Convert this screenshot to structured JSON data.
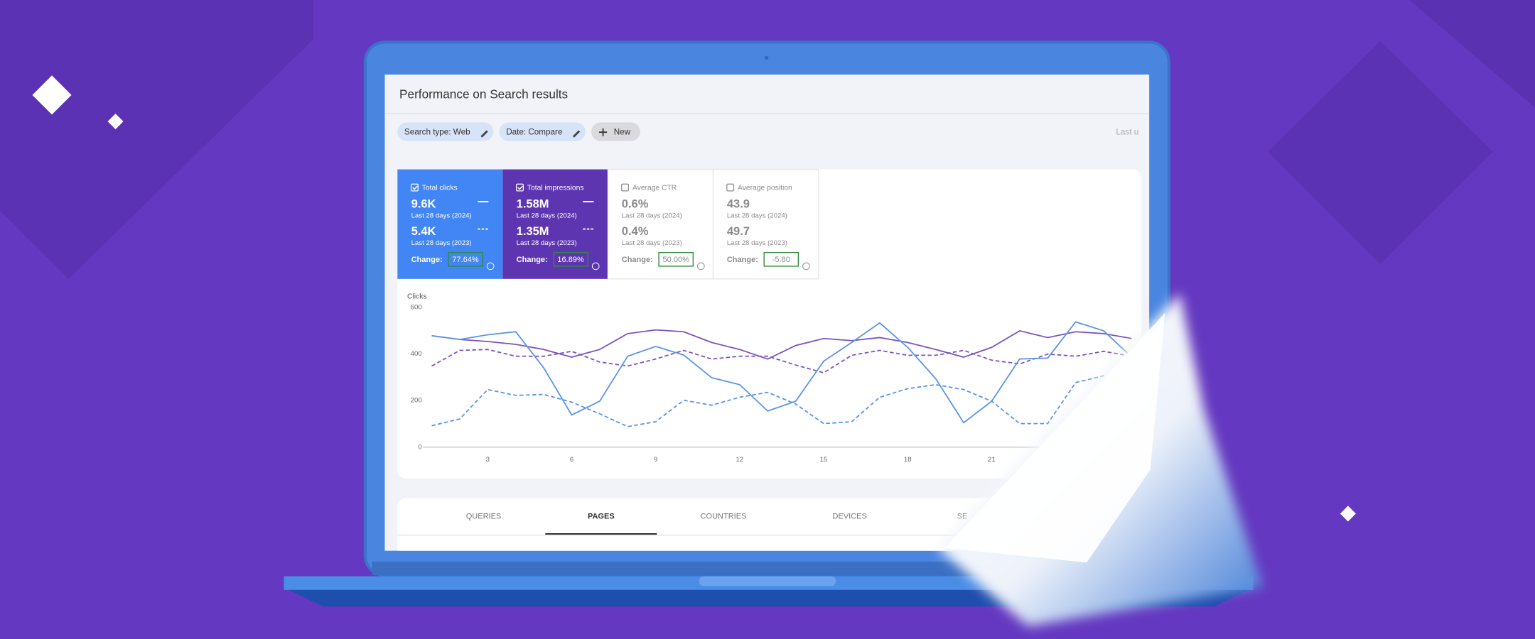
{
  "header": {
    "title": "Performance on Search results"
  },
  "filters": [
    "Search type: Web",
    "Date: Compare",
    "New"
  ],
  "last_updated": "Last u",
  "metrics": [
    {
      "label": "Total clicks",
      "selected": true,
      "color": "#4285f4",
      "current": "9.6K",
      "current_period": "Last 28 days (2024)",
      "previous": "5.4K",
      "previous_period": "Last 28 days (2023)",
      "change_label": "Change:",
      "change": "77.64%"
    },
    {
      "label": "Total impressions",
      "selected": true,
      "color": "#5e35b1",
      "current": "1.58M",
      "current_period": "Last 28 days (2024)",
      "previous": "1.35M",
      "previous_period": "Last 28 days (2023)",
      "change_label": "Change:",
      "change": "16.89%"
    },
    {
      "label": "Average CTR",
      "selected": false,
      "current": "0.6%",
      "current_period": "Last 28 days (2024)",
      "previous": "0.4%",
      "previous_period": "Last 28 days (2023)",
      "change_label": "Change:",
      "change": "50.00%"
    },
    {
      "label": "Average position",
      "selected": false,
      "current": "43.9",
      "current_period": "Last 28 days (2024)",
      "previous": "49.7",
      "previous_period": "Last 28 days (2023)",
      "change_label": "Change:",
      "change": "-5.80"
    }
  ],
  "chart_data": {
    "type": "line",
    "y_label": "Clicks",
    "x": [
      1,
      2,
      3,
      4,
      5,
      6,
      7,
      8,
      9,
      10,
      11,
      12,
      13,
      14,
      15,
      16,
      17,
      18,
      19,
      20,
      21,
      22,
      23,
      24,
      25,
      26
    ],
    "series": [
      {
        "color": "#7b52c1",
        "dashed": false,
        "values": [
          478,
          462,
          453,
          441,
          419,
          386,
          419,
          487,
          503,
          495,
          449,
          419,
          378,
          436,
          466,
          457,
          470,
          449,
          419,
          386,
          428,
          499,
          470,
          495,
          487,
          466
        ]
      },
      {
        "color": "#7b52c1",
        "dashed": true,
        "values": [
          348,
          415,
          419,
          390,
          390,
          411,
          365,
          348,
          378,
          415,
          378,
          390,
          390,
          352,
          319,
          394,
          415,
          394,
          394,
          415,
          373,
          357,
          399,
          390,
          411,
          390
        ]
      },
      {
        "color": "#5a93e6",
        "dashed": false,
        "values": [
          478,
          462,
          482,
          495,
          340,
          138,
          197,
          390,
          432,
          395,
          298,
          268,
          155,
          197,
          369,
          449,
          533,
          428,
          294,
          105,
          197,
          378,
          382,
          537,
          499,
          386
        ]
      },
      {
        "color": "#5a93e6",
        "dashed": true,
        "values": [
          92,
          121,
          247,
          222,
          226,
          193,
          143,
          88,
          109,
          201,
          180,
          214,
          235,
          185,
          101,
          109,
          214,
          251,
          268,
          247,
          197,
          101,
          101,
          277,
          306,
          323
        ]
      }
    ],
    "xlim": [
      1,
      26
    ],
    "ylim": [
      0,
      600
    ],
    "xticks": [
      3,
      6,
      9,
      12,
      15,
      18,
      21
    ],
    "yticks": [
      0,
      200,
      400,
      600
    ],
    "grid": false
  },
  "tabs": [
    "QUERIES",
    "PAGES",
    "COUNTRIES",
    "DEVICES",
    "SE"
  ],
  "active_tab": 1
}
